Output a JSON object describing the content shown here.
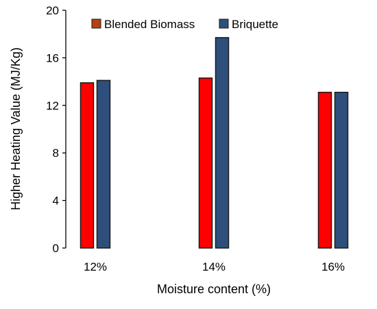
{
  "chart_data": {
    "type": "bar",
    "categories": [
      "12%",
      "14%",
      "16%"
    ],
    "series": [
      {
        "name": "Blended Biomass",
        "values": [
          13.9,
          14.3,
          13.1
        ]
      },
      {
        "name": "Briquette",
        "values": [
          14.1,
          17.7,
          13.1
        ]
      }
    ],
    "xlabel": "Moisture content (%)",
    "ylabel": "Higher Heating Value (MJ/Kg)",
    "ylim": [
      0,
      20
    ],
    "yticks": [
      0,
      4,
      8,
      12,
      16,
      20
    ],
    "grid": false,
    "legend_position": "top",
    "colors": {
      "Blended Biomass": "#ff0000",
      "Briquette": "#2e4f7c",
      "legend_blended_swatch": "#b2430e",
      "bar_border": "#1a1a1a"
    }
  }
}
